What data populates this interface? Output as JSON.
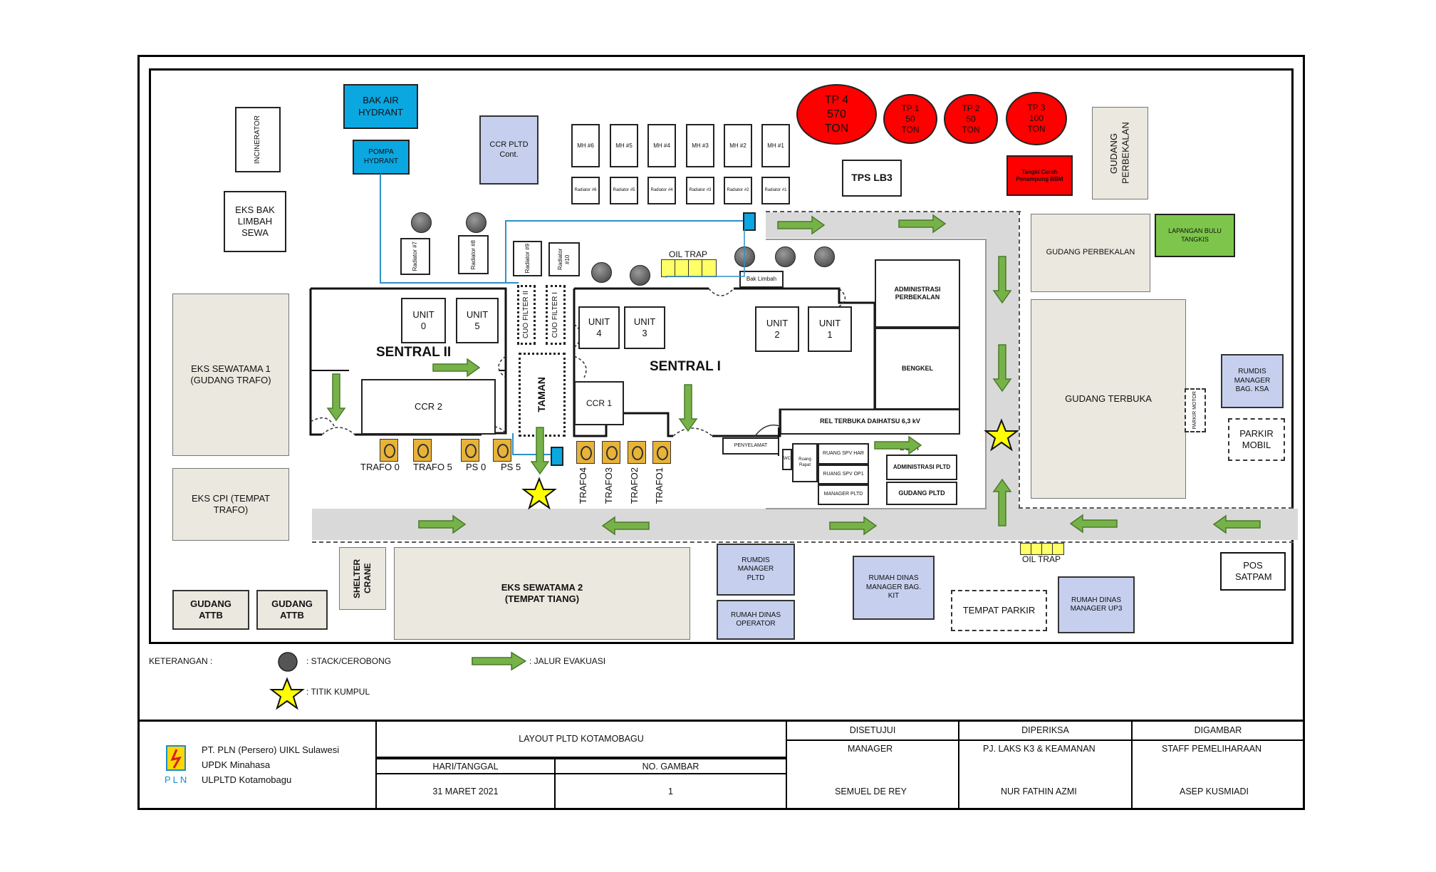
{
  "colors": {
    "road": "#d9d9d9",
    "building": "#ebe8df",
    "rumdis": "#c6d0ee",
    "hydrant": "#0ba7e1",
    "tank": "#ff0000",
    "arrow": "#76b248",
    "lapangan": "#7dc64b",
    "trafo": "#e8b338",
    "oil_trap": "#ffff66"
  },
  "map": {
    "incinerator": "INCINERATOR",
    "bak_air_hydrant": "BAK AIR HYDRANT",
    "pompa_hydrant": "POMPA HYDRANT",
    "eks_bak_limbah": "EKS BAK LIMBAH SEWA",
    "ccr_pltd_cont": "CCR PLTD Cont.",
    "mh_top": [
      "MH #6",
      "MH #5",
      "MH #4",
      "MH #3",
      "MH #2",
      "MH #1"
    ],
    "mh_bottom": [
      "Radiator #6",
      "Radiator #5",
      "Radiator #4",
      "Radiator #3",
      "Radiator #2",
      "Radiator #1"
    ],
    "tp4": "TP 4 570 TON",
    "tp1": "TP 1 50 TON",
    "tp2": "TP 2 50 TON",
    "tp3": "TP 3 100 TON",
    "tps_lb3": "TPS LB3",
    "tangki_curah": "Tangki Curah Penampung BBM",
    "gudang_perbekalan_v": "GUDANG PERBEKALAN",
    "gudang_perbekalan": "GUDANG PERBEKALAN",
    "lapangan": "LAPANGAN BULU TANGKIS",
    "radiator_7": "Radiator #7",
    "radiator_8": "Radiator #8",
    "radiator_9": "Radiator #9",
    "radiator_10": "Radiator #10",
    "oil_trap_top": "OIL TRAP",
    "bak_limbah": "Bak Limbah",
    "cuo_filter_2": "CUO FILTER II",
    "cuo_filter_1": "CUO FILTER I",
    "unit0": "UNIT 0",
    "unit5": "UNIT 5",
    "unit4": "UNIT 4",
    "unit3": "UNIT 3",
    "unit2": "UNIT 2",
    "unit1": "UNIT 1",
    "sentral2": "SENTRAL  II",
    "sentral1": "SENTRAL  I",
    "ccr2": "CCR 2",
    "ccr1": "CCR 1",
    "taman": "TAMAN",
    "administrasi_perbekalan": "ADMINISTRASI PERBEKALAN",
    "bengkel": "BENGKEL",
    "rel_terbuka": "REL TERBUKA DAIHATSU 6,3 kV",
    "penyelamat": "PENYELAMAT",
    "lobi": "LOBI",
    "administrasi_pltd": "ADMINISTRASI PLTD",
    "gudang_pltd": "GUDANG PLTD",
    "ruang_spv_har": "RUANG SPV HAR",
    "ruang_spv_op1": "RUANG SPV OP1",
    "manager_pltd": "MANAGER PLTD",
    "ruang_rapat": "Ruang Rapat",
    "wc": "WC",
    "trafo_left": [
      "TRAFO 0",
      "TRAFO 5",
      "PS 0",
      "PS 5"
    ],
    "trafo_right": [
      "TRAFO4",
      "TRAFO3",
      "TRAFO2",
      "TRAFO1"
    ],
    "eks_sewatama1": "EKS SEWATAMA 1 (GUDANG TRAFO)",
    "eks_cpi": "EKS CPI (TEMPAT TRAFO)",
    "gudang_attb1": "GUDANG ATTB",
    "gudang_attb2": "GUDANG ATTB",
    "shelter_crane": "SHELTER CRANE",
    "eks_sewatama2": "EKS SEWATAMA 2 (TEMPAT TIANG)",
    "rumdis_manager_pltd": "RUMDIS MANAGER PLTD",
    "rumah_dinas_operator": "RUMAH DINAS OPERATOR",
    "rumah_dinas_bag_kit": "RUMAH DINAS MANAGER BAG. KIT",
    "tempat_parkir": "TEMPAT PARKIR",
    "rumah_dinas_up3": "RUMAH DINAS MANAGER UP3",
    "oil_trap_bottom": "OIL TRAP",
    "pos_satpam": "POS SATPAM",
    "gudang_terbuka": "GUDANG TERBUKA",
    "rumdis_ksa": "RUMDIS MANAGER BAG. KSA",
    "parkir_motor": "PARKIR MOTOR",
    "parkir_mobil": "PARKIR MOBIL"
  },
  "legend": {
    "title": "KETERANGAN :",
    "stack": ": STACK/CEROBONG",
    "evakuasi": ": JALUR EVAKUASI",
    "titik_kumpul": ": TITIK KUMPUL"
  },
  "title_block": {
    "company_line1": "PT. PLN (Persero) UIKL Sulawesi",
    "company_line2": "UPDK Minahasa",
    "company_line3": "ULPLTD Kotamobagu",
    "logo_text": "PLN",
    "title": "LAYOUT PLTD KOTAMOBAGU",
    "hari_tanggal_label": "HARI/TANGGAL",
    "no_gambar_label": "NO. GAMBAR",
    "date": "31 MARET 2021",
    "no_gambar": "1",
    "disetujui": "DISETUJUI",
    "diperiksa": "DIPERIKSA",
    "digambar": "DIGAMBAR",
    "role_manager": "MANAGER",
    "role_pj": "PJ. LAKS K3 & KEAMANAN",
    "role_staff": "STAFF PEMELIHARAAN",
    "name_manager": "SEMUEL DE REY",
    "name_pj": "NUR FATHIN AZMI",
    "name_staff": "ASEP KUSMIADI"
  }
}
